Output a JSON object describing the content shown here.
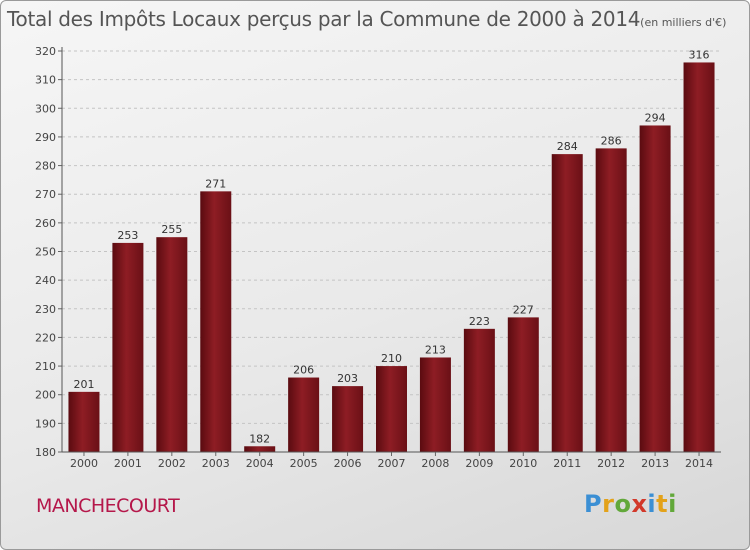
{
  "chart_data": {
    "type": "bar",
    "title": "Total des Impôts Locaux perçus par la Commune de 2000 à 2014",
    "unit_label": "(en milliers d'€)",
    "categories": [
      "2000",
      "2001",
      "2002",
      "2003",
      "2004",
      "2005",
      "2006",
      "2007",
      "2008",
      "2009",
      "2010",
      "2011",
      "2012",
      "2013",
      "2014"
    ],
    "values": [
      201,
      253,
      255,
      271,
      182,
      206,
      203,
      210,
      213,
      223,
      227,
      284,
      286,
      294,
      316
    ],
    "ylim": [
      180,
      320
    ],
    "yticks": [
      180,
      190,
      200,
      210,
      220,
      230,
      240,
      250,
      260,
      270,
      280,
      290,
      300,
      310,
      320
    ],
    "xlabel": "",
    "ylabel": "",
    "grid": true,
    "bar_color": "#8b1c22"
  },
  "commune_name": "MANCHECOURT",
  "logo": {
    "letters": [
      "P",
      "r",
      "o",
      "x",
      "i",
      "t",
      "i"
    ]
  }
}
